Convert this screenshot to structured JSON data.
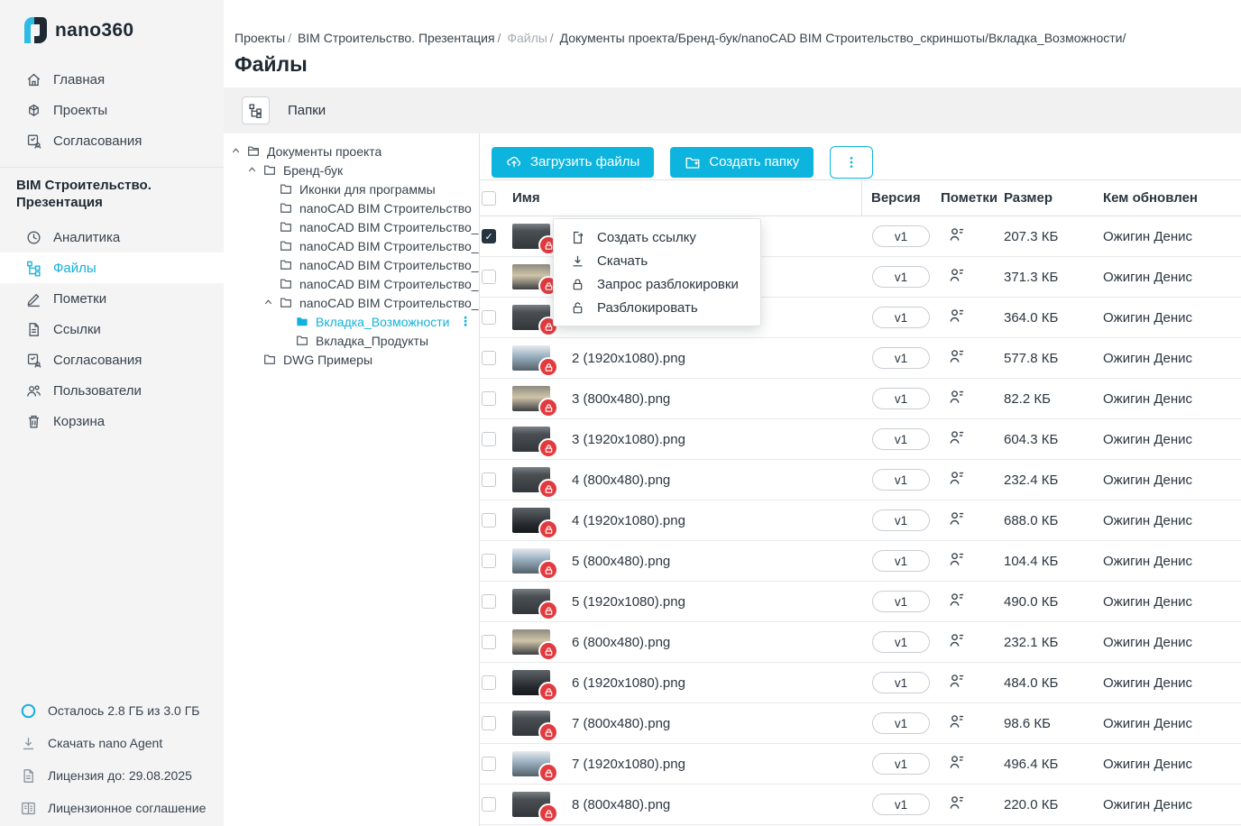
{
  "app": {
    "logo_text": "nano360"
  },
  "colors": {
    "accent": "#0db4dd",
    "danger": "#e23b3f",
    "checkbox_checked": "#263440",
    "sidebar_bg": "#f4f4f5"
  },
  "sidebar": {
    "main_items": [
      {
        "label": "Главная",
        "icon": "home-icon"
      },
      {
        "label": "Проекты",
        "icon": "projects-icon"
      },
      {
        "label": "Согласования",
        "icon": "approvals-icon"
      }
    ],
    "project_title": "BIM Строительство. Презентация",
    "project_items": [
      {
        "label": "Аналитика",
        "icon": "analytics-icon"
      },
      {
        "label": "Файлы",
        "icon": "files-icon",
        "active": true
      },
      {
        "label": "Пометки",
        "icon": "notes-icon"
      },
      {
        "label": "Ссылки",
        "icon": "links-icon"
      },
      {
        "label": "Согласования",
        "icon": "approvals-icon"
      },
      {
        "label": "Пользователи",
        "icon": "users-icon"
      },
      {
        "label": "Корзина",
        "icon": "trash-icon"
      }
    ],
    "footer_items": [
      {
        "label": "Осталось 2.8 ГБ из 3.0 ГБ",
        "icon": "storage-ring-icon",
        "accent": true
      },
      {
        "label": "Скачать nano Agent",
        "icon": "download-icon"
      },
      {
        "label": "Лицензия до: 29.08.2025",
        "icon": "license-icon"
      },
      {
        "label": "Лицензионное соглашение",
        "icon": "agreement-icon"
      }
    ]
  },
  "header": {
    "breadcrumb": [
      {
        "text": "Проекты",
        "sep": true
      },
      {
        "text": "BIM Строительство. Презентация",
        "sep": true
      },
      {
        "text": "Файлы",
        "muted": true,
        "sep": true
      },
      {
        "text": "Документы проекта/Бренд-бук/nanoCAD BIM Строительство_скриншоты/Вкладка_Возможности/"
      }
    ],
    "title": "Файлы"
  },
  "tabs": {
    "folders_label": "Папки",
    "folders_icon": "folder-tree-icon"
  },
  "tree": {
    "items": [
      {
        "label": "Документы проекта",
        "level": 0,
        "expander": true,
        "icon": "folder-open-icon"
      },
      {
        "label": "Бренд-бук",
        "level": 1,
        "expander": true,
        "icon": "folder-icon"
      },
      {
        "label": "Иконки для программы",
        "level": 2,
        "icon": "folder-icon"
      },
      {
        "label": "nanoCAD BIM Строительство",
        "level": 2,
        "icon": "folder-icon"
      },
      {
        "label": "nanoCAD BIM Строительство_",
        "level": 2,
        "icon": "folder-icon"
      },
      {
        "label": "nanoCAD BIM Строительство_",
        "level": 2,
        "icon": "folder-icon"
      },
      {
        "label": "nanoCAD BIM Строительство_",
        "level": 2,
        "icon": "folder-icon"
      },
      {
        "label": "nanoCAD BIM Строительство_",
        "level": 2,
        "icon": "folder-icon"
      },
      {
        "label": "nanoCAD BIM Строительство_",
        "level": 2,
        "expander": true,
        "icon": "folder-icon"
      },
      {
        "label": "Вкладка_Возможности",
        "level": 3,
        "selected": true,
        "icon": "folder-filled-icon",
        "menu": true,
        "menu_glyph": "⋮"
      },
      {
        "label": "Вкладка_Продукты",
        "level": 3,
        "icon": "folder-icon"
      },
      {
        "label": "DWG Примеры",
        "level": 1,
        "icon": "folder-icon"
      }
    ]
  },
  "toolbar": {
    "upload_label": "Загрузить файлы",
    "upload_icon": "upload-cloud-icon",
    "create_folder_label": "Создать папку",
    "create_folder_icon": "folder-plus-icon",
    "more_icon": "dots-vertical-icon"
  },
  "table": {
    "columns": {
      "name": "Имя",
      "version": "Версия",
      "marks": "Пометки",
      "size": "Размер",
      "updated_by": "Кем обновлен"
    },
    "row_icons": {
      "marks": "user-marks-icon",
      "lock_badge": "lock-badge-icon"
    },
    "rows": [
      {
        "name": "",
        "version": "v1",
        "size": "207.3 КБ",
        "updated_by": "Ожигин Денис",
        "checked": true,
        "checkbox": true,
        "marks": true,
        "locked": true
      },
      {
        "name": "",
        "version": "v1",
        "size": "371.3 КБ",
        "updated_by": "Ожигин Денис",
        "checkbox": true,
        "marks": true,
        "locked": true
      },
      {
        "name": "",
        "version": "v1",
        "size": "364.0 КБ",
        "updated_by": "Ожигин Денис",
        "checkbox": true,
        "marks": true,
        "locked": true
      },
      {
        "name": "2 (1920x1080).png",
        "version": "v1",
        "size": "577.8 КБ",
        "updated_by": "Ожигин Денис",
        "checkbox": true,
        "marks": true,
        "locked": true
      },
      {
        "name": "3 (800x480).png",
        "version": "v1",
        "size": "82.2 КБ",
        "updated_by": "Ожигин Денис",
        "checkbox": true,
        "marks": true,
        "locked": true
      },
      {
        "name": "3 (1920x1080).png",
        "version": "v1",
        "size": "604.3 КБ",
        "updated_by": "Ожигин Денис",
        "checkbox": true,
        "marks": true,
        "locked": true
      },
      {
        "name": "4 (800x480).png",
        "version": "v1",
        "size": "232.4 КБ",
        "updated_by": "Ожигин Денис",
        "checkbox": true,
        "marks": true,
        "locked": true
      },
      {
        "name": "4 (1920x1080).png",
        "version": "v1",
        "size": "688.0 КБ",
        "updated_by": "Ожигин Денис",
        "checkbox": true,
        "marks": true,
        "locked": true
      },
      {
        "name": "5 (800x480).png",
        "version": "v1",
        "size": "104.4 КБ",
        "updated_by": "Ожигин Денис",
        "checkbox": true,
        "marks": true,
        "locked": true
      },
      {
        "name": "5 (1920x1080).png",
        "version": "v1",
        "size": "490.0 КБ",
        "updated_by": "Ожигин Денис",
        "checkbox": true,
        "marks": true,
        "locked": true
      },
      {
        "name": "6 (800x480).png",
        "version": "v1",
        "size": "232.1 КБ",
        "updated_by": "Ожигин Денис",
        "checkbox": true,
        "marks": true,
        "locked": true
      },
      {
        "name": "6 (1920x1080).png",
        "version": "v1",
        "size": "484.0 КБ",
        "updated_by": "Ожигин Денис",
        "checkbox": true,
        "marks": true,
        "locked": true
      },
      {
        "name": "7 (800x480).png",
        "version": "v1",
        "size": "98.6 КБ",
        "updated_by": "Ожигин Денис",
        "checkbox": true,
        "marks": true,
        "locked": true
      },
      {
        "name": "7 (1920x1080).png",
        "version": "v1",
        "size": "496.4 КБ",
        "updated_by": "Ожигин Денис",
        "checkbox": true,
        "marks": true,
        "locked": true
      },
      {
        "name": "8 (800x480).png",
        "version": "v1",
        "size": "220.0 КБ",
        "updated_by": "Ожигин Денис",
        "checkbox": true,
        "marks": true,
        "locked": true
      },
      {
        "name": "",
        "version": "",
        "size": "",
        "updated_by": "",
        "partial": true
      }
    ]
  },
  "context_menu": {
    "items": [
      {
        "label": "Создать ссылку",
        "icon": "create-link-icon"
      },
      {
        "label": "Скачать",
        "icon": "download-icon"
      },
      {
        "label": "Запрос разблокировки",
        "icon": "lock-icon"
      },
      {
        "label": "Разблокировать",
        "icon": "unlock-icon"
      }
    ]
  }
}
